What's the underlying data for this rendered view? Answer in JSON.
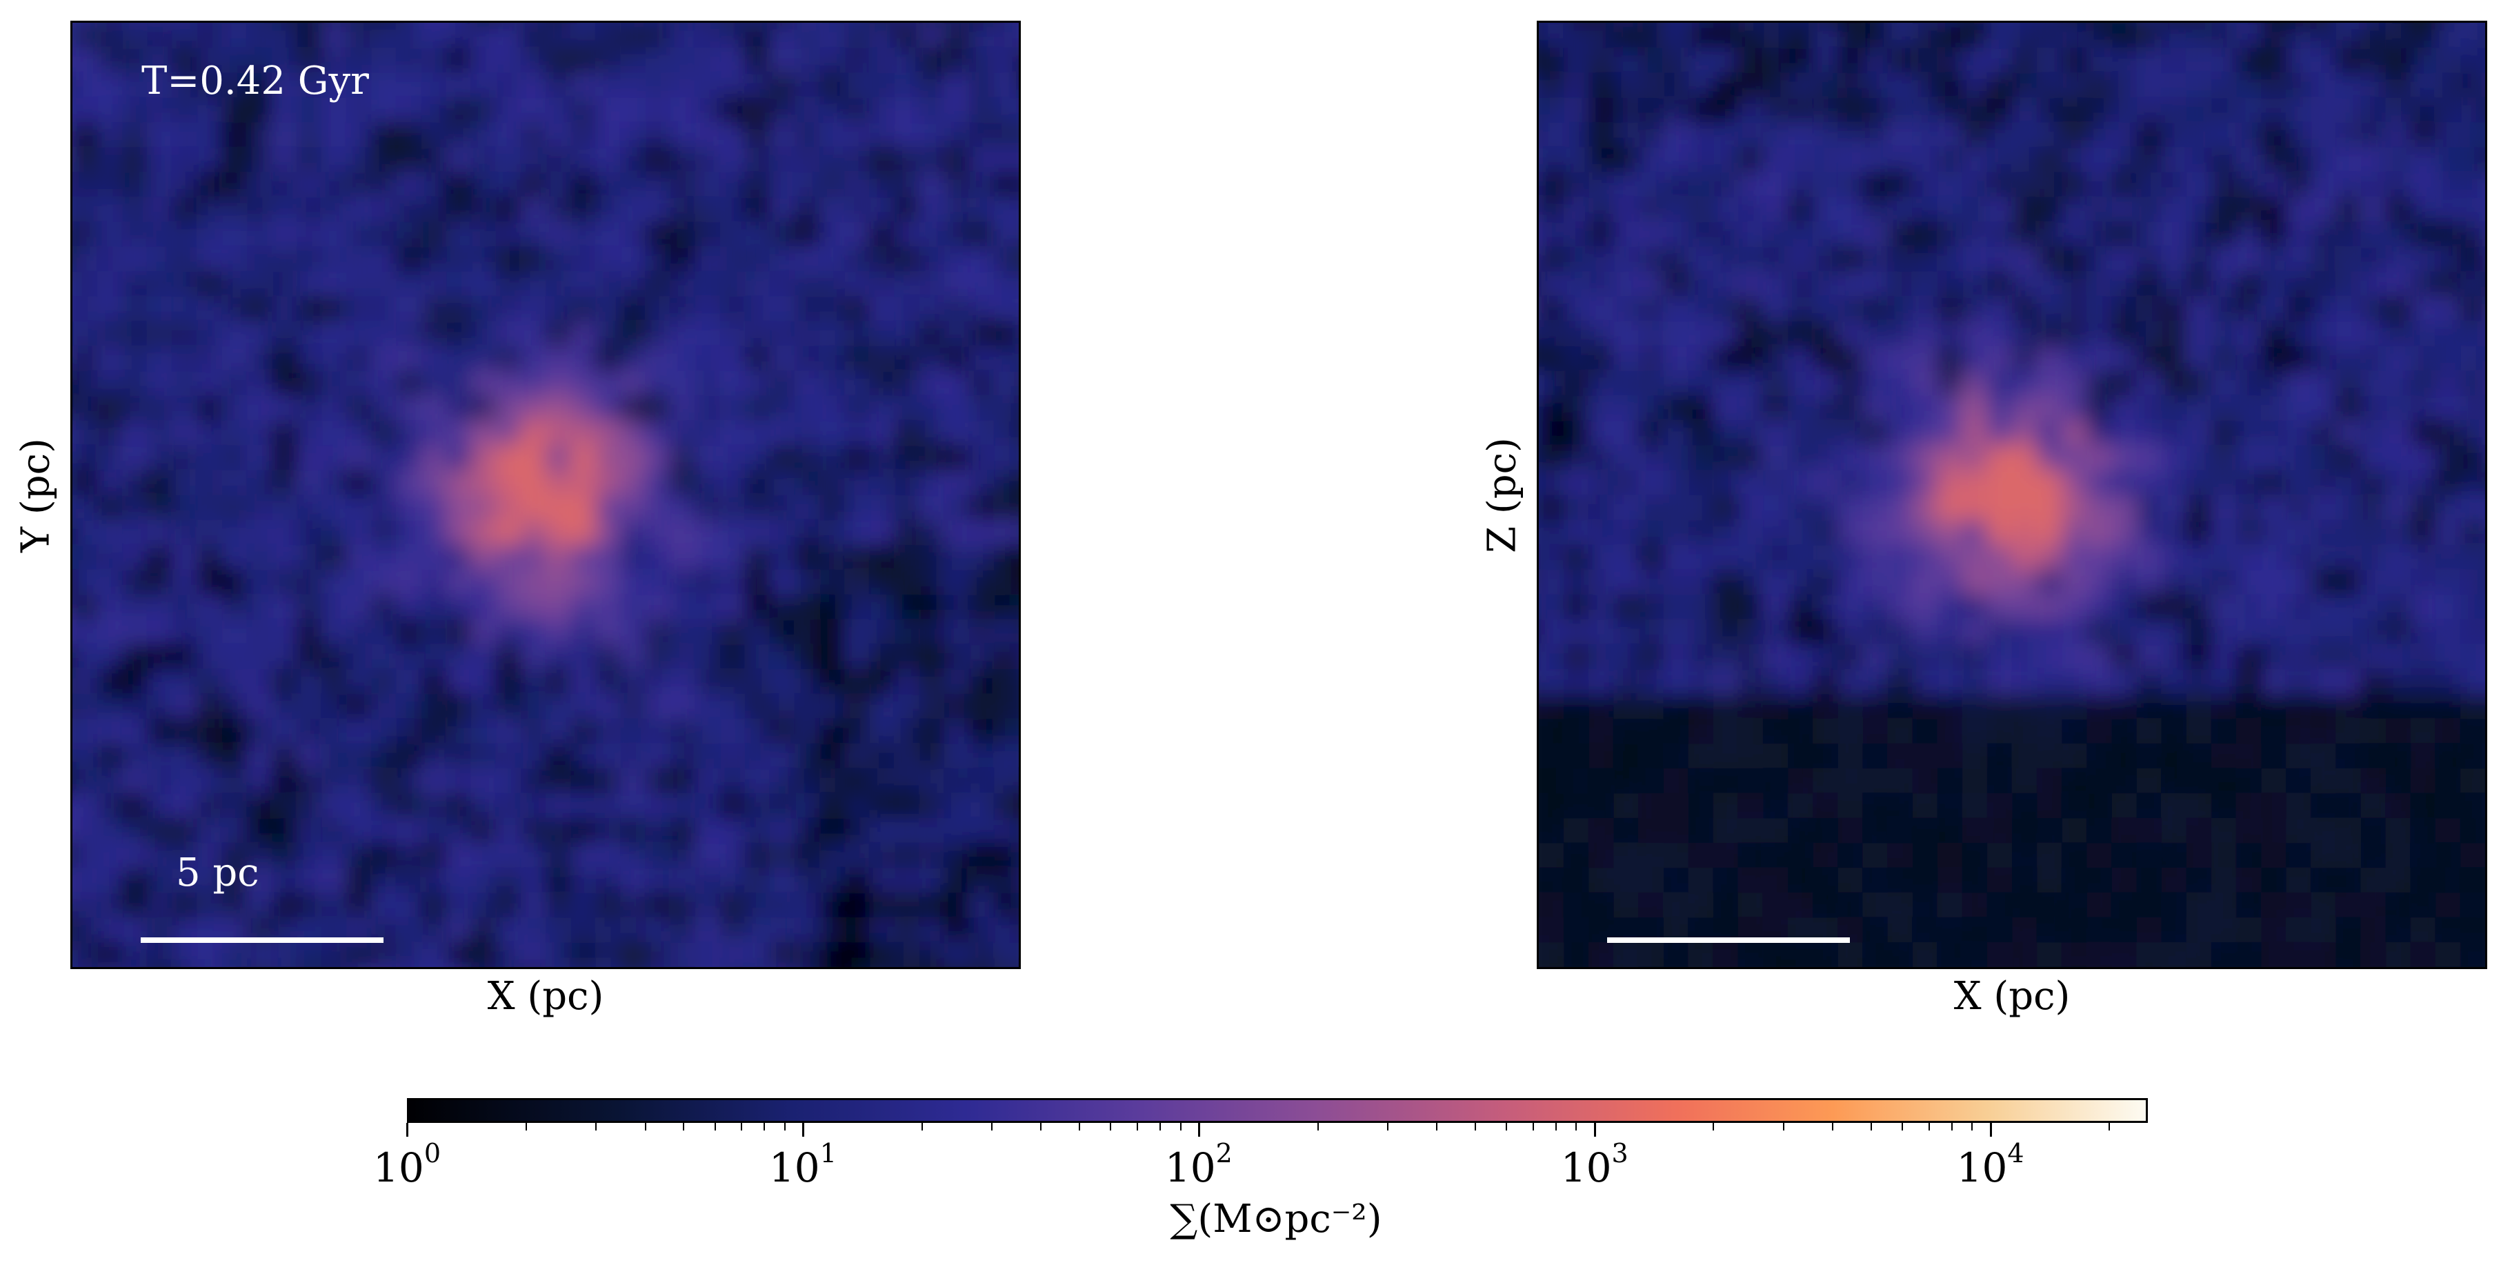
{
  "chart_data": [
    {
      "type": "heatmap",
      "panel": "face-on projection",
      "xlabel": "X (pc)",
      "ylabel": "Y (pc)",
      "annotation": "T=0.42 Gyr",
      "scale_bar_label": "5 pc",
      "scale_bar_length_pc": 5,
      "axis_ticks": "none",
      "peak_density_Msun_pc2": 1000,
      "colormap": "magma-like"
    },
    {
      "type": "heatmap",
      "panel": "edge-on projection",
      "xlabel": "X (pc)",
      "ylabel": "Z (pc)",
      "scale_bar_length_pc": 5,
      "axis_ticks": "none",
      "peak_density_Msun_pc2": 1000,
      "colormap": "magma-like"
    }
  ],
  "colorbar": {
    "orientation": "horizontal",
    "scale": "log",
    "range": [
      1,
      25000
    ],
    "ticks": [
      {
        "base": "10",
        "exp": "0"
      },
      {
        "base": "10",
        "exp": "1"
      },
      {
        "base": "10",
        "exp": "2"
      },
      {
        "base": "10",
        "exp": "3"
      },
      {
        "base": "10",
        "exp": "4"
      }
    ],
    "label": "∑(M⊙pc⁻²)"
  }
}
